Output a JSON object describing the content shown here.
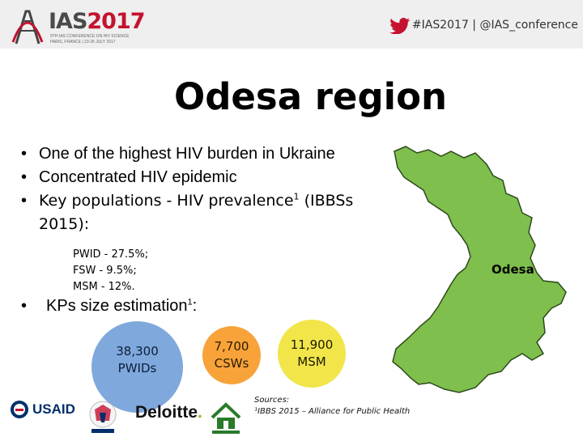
{
  "header": {
    "logo_main": "IAS",
    "logo_year": "2017",
    "logo_sub1": "9TH IAS CONFERENCE ON HIV SCIENCE",
    "logo_sub2": "PARIS, FRANCE | 23-26 JULY 2017",
    "twitter_text": "#IAS2017 | @IAS_conference"
  },
  "slide": {
    "title": "Odesa region",
    "bullets": [
      "One of the highest HIV burden in Ukraine",
      "Concentrated HIV epidemic"
    ],
    "bullet3_a": "Key  populations  -  HIV  prevalence",
    "bullet3_sup": "1",
    "bullet3_b": " (IBBSs",
    "bullet3_line2": "2015):",
    "sub_items": [
      "PWID - 27.5%;",
      "FSW - 9.5%;",
      "MSM - 12%."
    ],
    "kp_text": "KPs size estimation",
    "kp_sup": "1",
    "kp_colon": ":",
    "circles": {
      "pwid_num": "38,300",
      "pwid_label": "PWIDs",
      "csw_num": "7,700",
      "csw_label": "CSWs",
      "msm_num": "11,900",
      "msm_label": "MSM"
    },
    "map_label": "Odesa",
    "sources_title": "Sources:",
    "sources_line": "¹IBBS 2015 – Alliance for Public Health"
  },
  "sponsors": {
    "usaid": "USAID",
    "deloitte": "Deloitte",
    "deloitte_dot": "."
  },
  "colors": {
    "circle_pwid": "#7fa8dc",
    "circle_csw": "#f7a33a",
    "circle_msm": "#f2e54a",
    "map_fill": "#7fbf4d",
    "twitter": "#c4122f"
  }
}
